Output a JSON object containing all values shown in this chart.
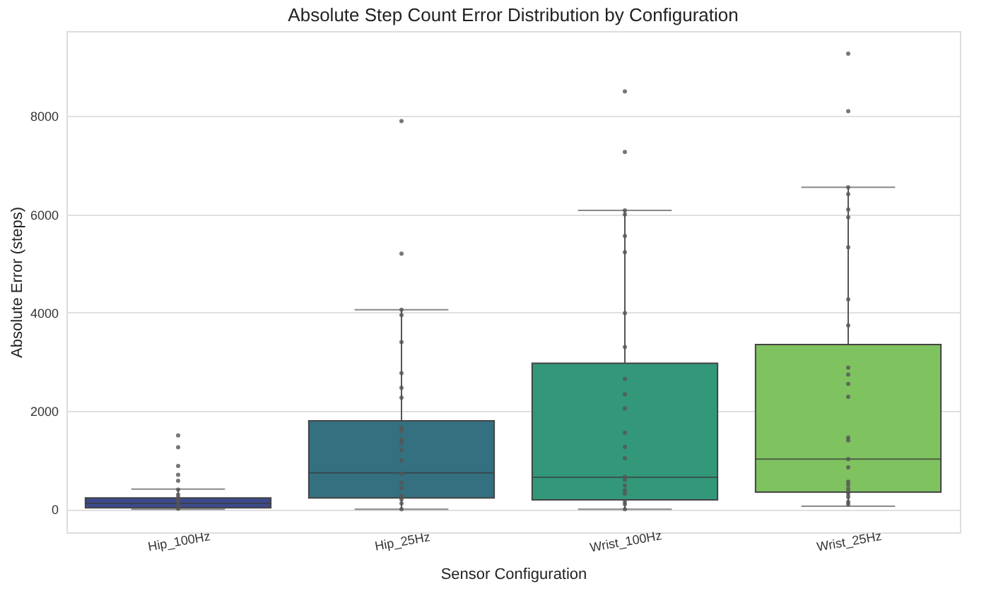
{
  "chart_data": {
    "type": "box",
    "title": "Absolute Step Count Error Distribution by Configuration",
    "xlabel": "Sensor Configuration",
    "ylabel": "Absolute Error (steps)",
    "categories": [
      "Hip_100Hz",
      "Hip_25Hz",
      "Wrist_100Hz",
      "Wrist_25Hz"
    ],
    "colors": [
      "#3b4a8a",
      "#34707f",
      "#33977a",
      "#7fc260"
    ],
    "boxes": [
      {
        "low": 0,
        "q1": 30,
        "median": 120,
        "q3": 230,
        "high": 410
      },
      {
        "low": 0,
        "q1": 230,
        "median": 740,
        "q3": 1800,
        "high": 4060
      },
      {
        "low": 0,
        "q1": 190,
        "median": 650,
        "q3": 2970,
        "high": 6080
      },
      {
        "low": 60,
        "q1": 350,
        "median": 1020,
        "q3": 3350,
        "high": 6550
      }
    ],
    "ylim": [
      -470,
      9730
    ],
    "yticks": [
      0,
      2000,
      4000,
      6000,
      8000
    ],
    "grid": "y",
    "series": [
      {
        "type": "scatter",
        "color": "#555555",
        "x": [
          "Hip_100Hz",
          "Hip_100Hz",
          "Hip_100Hz",
          "Hip_100Hz",
          "Hip_100Hz",
          "Hip_100Hz",
          "Hip_100Hz",
          "Hip_100Hz",
          "Hip_100Hz",
          "Hip_100Hz",
          "Hip_100Hz",
          "Hip_100Hz",
          "Hip_25Hz",
          "Hip_25Hz",
          "Hip_25Hz",
          "Hip_25Hz",
          "Hip_25Hz",
          "Hip_25Hz",
          "Hip_25Hz",
          "Hip_25Hz",
          "Hip_25Hz",
          "Hip_25Hz",
          "Hip_25Hz",
          "Hip_25Hz",
          "Hip_25Hz",
          "Hip_25Hz",
          "Hip_25Hz",
          "Hip_25Hz",
          "Hip_25Hz",
          "Hip_25Hz",
          "Hip_25Hz",
          "Hip_25Hz",
          "Hip_25Hz",
          "Wrist_100Hz",
          "Wrist_100Hz",
          "Wrist_100Hz",
          "Wrist_100Hz",
          "Wrist_100Hz",
          "Wrist_100Hz",
          "Wrist_100Hz",
          "Wrist_100Hz",
          "Wrist_100Hz",
          "Wrist_100Hz",
          "Wrist_100Hz",
          "Wrist_100Hz",
          "Wrist_100Hz",
          "Wrist_100Hz",
          "Wrist_100Hz",
          "Wrist_100Hz",
          "Wrist_100Hz",
          "Wrist_100Hz",
          "Wrist_100Hz",
          "Wrist_100Hz",
          "Wrist_100Hz",
          "Wrist_100Hz",
          "Wrist_25Hz",
          "Wrist_25Hz",
          "Wrist_25Hz",
          "Wrist_25Hz",
          "Wrist_25Hz",
          "Wrist_25Hz",
          "Wrist_25Hz",
          "Wrist_25Hz",
          "Wrist_25Hz",
          "Wrist_25Hz",
          "Wrist_25Hz",
          "Wrist_25Hz",
          "Wrist_25Hz",
          "Wrist_25Hz",
          "Wrist_25Hz",
          "Wrist_25Hz",
          "Wrist_25Hz",
          "Wrist_25Hz",
          "Wrist_25Hz",
          "Wrist_25Hz",
          "Wrist_25Hz",
          "Wrist_25Hz",
          "Wrist_25Hz",
          "Wrist_25Hz",
          "Wrist_25Hz"
        ],
        "values": [
          1500,
          1260,
          880,
          700,
          580,
          400,
          300,
          240,
          200,
          150,
          80,
          10,
          7900,
          5200,
          4060,
          3950,
          3400,
          2770,
          2470,
          2270,
          1660,
          1590,
          1420,
          1350,
          1200,
          990,
          720,
          540,
          430,
          270,
          200,
          120,
          0,
          8500,
          7270,
          6080,
          6000,
          5560,
          5230,
          3990,
          3300,
          2650,
          2340,
          2050,
          1560,
          1270,
          1040,
          660,
          600,
          480,
          390,
          320,
          150,
          100,
          0,
          9270,
          8100,
          6550,
          6410,
          6100,
          5940,
          5330,
          4270,
          3740,
          2880,
          2740,
          2550,
          2290,
          1460,
          1400,
          1020,
          850,
          560,
          500,
          420,
          360,
          310,
          250,
          150,
          100
        ]
      }
    ]
  }
}
